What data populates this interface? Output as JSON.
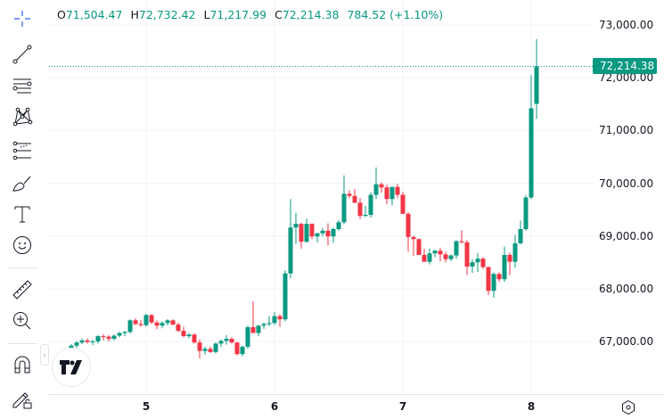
{
  "legend": {
    "open_label": "O",
    "open": "71,504.47",
    "high_label": "H",
    "high": "72,732.42",
    "low_label": "L",
    "low": "71,217.99",
    "close_label": "C",
    "close": "72,214.38",
    "change": "784.52 (+1.10%)"
  },
  "toolbar": {
    "tools": [
      "crosshair",
      "trend-line",
      "horizontal-lines",
      "pattern",
      "fib-retracement",
      "brush",
      "text",
      "emoji",
      "ruler",
      "zoom-in",
      "magnet",
      "lock-drawings"
    ]
  },
  "colors": {
    "up": "#089981",
    "down": "#f23645",
    "grid": "#f0f3fa",
    "text": "#131722"
  },
  "price_axis": {
    "labels": [
      "73,000.00",
      "72,000.00",
      "71,000.00",
      "70,000.00",
      "69,000.00",
      "68,000.00",
      "67,000.00"
    ],
    "last_price": "72,214.38"
  },
  "time_axis": {
    "labels": [
      "5",
      "6",
      "7",
      "8"
    ]
  },
  "chart_data": {
    "type": "candlestick",
    "title": "",
    "xlabel": "",
    "ylabel": "",
    "x_ticks": [
      "5",
      "6",
      "7",
      "8"
    ],
    "y_ticks": [
      67000,
      68000,
      69000,
      70000,
      71000,
      72000,
      73000
    ],
    "ylim": [
      66000,
      73500
    ],
    "grid": true,
    "last_price": 72214.38,
    "last_candle": {
      "open": 71504.47,
      "high": 72732.42,
      "low": 71217.99,
      "close": 72214.38,
      "change": 784.52,
      "change_pct": 1.1
    },
    "candles_ohlc": [
      [
        66880,
        66950,
        66840,
        66920
      ],
      [
        66920,
        67010,
        66880,
        66980
      ],
      [
        66980,
        67060,
        66950,
        67020
      ],
      [
        67020,
        67060,
        66960,
        66990
      ],
      [
        66990,
        67030,
        66930,
        67000
      ],
      [
        67000,
        67120,
        66960,
        67100
      ],
      [
        67100,
        67140,
        67020,
        67090
      ],
      [
        67090,
        67120,
        67000,
        67050
      ],
      [
        67050,
        67130,
        67020,
        67110
      ],
      [
        67110,
        67180,
        67080,
        67160
      ],
      [
        67160,
        67200,
        67100,
        67180
      ],
      [
        67180,
        67420,
        67150,
        67400
      ],
      [
        67400,
        67440,
        67310,
        67330
      ],
      [
        67330,
        67400,
        67280,
        67310
      ],
      [
        67310,
        67520,
        67280,
        67500
      ],
      [
        67500,
        67520,
        67330,
        67360
      ],
      [
        67360,
        67400,
        67230,
        67300
      ],
      [
        67300,
        67380,
        67250,
        67350
      ],
      [
        67350,
        67420,
        67300,
        67400
      ],
      [
        67400,
        67420,
        67310,
        67320
      ],
      [
        67320,
        67360,
        67180,
        67200
      ],
      [
        67200,
        67280,
        67080,
        67100
      ],
      [
        67100,
        67160,
        67060,
        67130
      ],
      [
        67130,
        67150,
        66960,
        66980
      ],
      [
        66980,
        67040,
        66680,
        66820
      ],
      [
        66820,
        66900,
        66750,
        66860
      ],
      [
        66860,
        66900,
        66780,
        66800
      ],
      [
        66800,
        66980,
        66770,
        66960
      ],
      [
        66960,
        67040,
        66900,
        67010
      ],
      [
        67010,
        67120,
        66940,
        67050
      ],
      [
        67050,
        67080,
        66960,
        66980
      ],
      [
        66980,
        66990,
        66740,
        66760
      ],
      [
        66760,
        66920,
        66720,
        66900
      ],
      [
        66900,
        67300,
        66860,
        67270
      ],
      [
        67270,
        67760,
        67200,
        67160
      ],
      [
        67160,
        67310,
        67100,
        67300
      ],
      [
        67300,
        67360,
        67240,
        67330
      ],
      [
        67330,
        67480,
        67290,
        67350
      ],
      [
        67350,
        67560,
        67310,
        67480
      ],
      [
        67480,
        67520,
        67280,
        67420
      ],
      [
        67420,
        68350,
        67380,
        68290
      ],
      [
        68290,
        69700,
        68200,
        69160
      ],
      [
        69160,
        69440,
        68850,
        69230
      ],
      [
        69230,
        69250,
        68760,
        68890
      ],
      [
        68890,
        69330,
        68870,
        69230
      ],
      [
        69230,
        69240,
        68940,
        68990
      ],
      [
        68990,
        69060,
        68880,
        69050
      ],
      [
        69050,
        69150,
        68990,
        69100
      ],
      [
        69100,
        69240,
        68820,
        68990
      ],
      [
        68990,
        69160,
        68870,
        69130
      ],
      [
        69130,
        69300,
        69100,
        69260
      ],
      [
        69260,
        70150,
        69220,
        69800
      ],
      [
        69800,
        69870,
        69720,
        69760
      ],
      [
        69760,
        69890,
        69620,
        69630
      ],
      [
        69630,
        69720,
        69320,
        69380
      ],
      [
        69380,
        69570,
        69360,
        69400
      ],
      [
        69400,
        69830,
        69350,
        69780
      ],
      [
        69780,
        70300,
        69700,
        69980
      ],
      [
        69980,
        70020,
        69820,
        69920
      ],
      [
        69920,
        69970,
        69600,
        69700
      ],
      [
        69700,
        69930,
        69580,
        69930
      ],
      [
        69930,
        69990,
        69720,
        69780
      ],
      [
        69780,
        69840,
        69420,
        69420
      ],
      [
        69420,
        69450,
        68700,
        68980
      ],
      [
        68980,
        69000,
        68620,
        68940
      ],
      [
        68940,
        68950,
        68680,
        68640
      ],
      [
        68640,
        68760,
        68520,
        68510
      ],
      [
        68510,
        68760,
        68460,
        68670
      ],
      [
        68670,
        68740,
        68600,
        68720
      ],
      [
        68720,
        68780,
        68520,
        68650
      ],
      [
        68650,
        68700,
        68500,
        68560
      ],
      [
        68560,
        68650,
        68520,
        68630
      ],
      [
        68630,
        68920,
        68570,
        68900
      ],
      [
        68900,
        69110,
        68860,
        68880
      ],
      [
        68880,
        68920,
        68260,
        68420
      ],
      [
        68420,
        68560,
        68300,
        68500
      ],
      [
        68500,
        68680,
        68320,
        68570
      ],
      [
        68570,
        68600,
        68380,
        68410
      ],
      [
        68410,
        68420,
        67880,
        67960
      ],
      [
        67960,
        68310,
        67830,
        68280
      ],
      [
        68280,
        68310,
        68130,
        68180
      ],
      [
        68180,
        68800,
        68130,
        68640
      ],
      [
        68640,
        68680,
        68260,
        68510
      ],
      [
        68510,
        69020,
        68400,
        68860
      ],
      [
        68860,
        69290,
        68840,
        69130
      ],
      [
        69130,
        69770,
        69100,
        69730
      ],
      [
        69730,
        72050,
        69700,
        71420
      ],
      [
        71504,
        72732,
        71218,
        72214
      ]
    ]
  }
}
